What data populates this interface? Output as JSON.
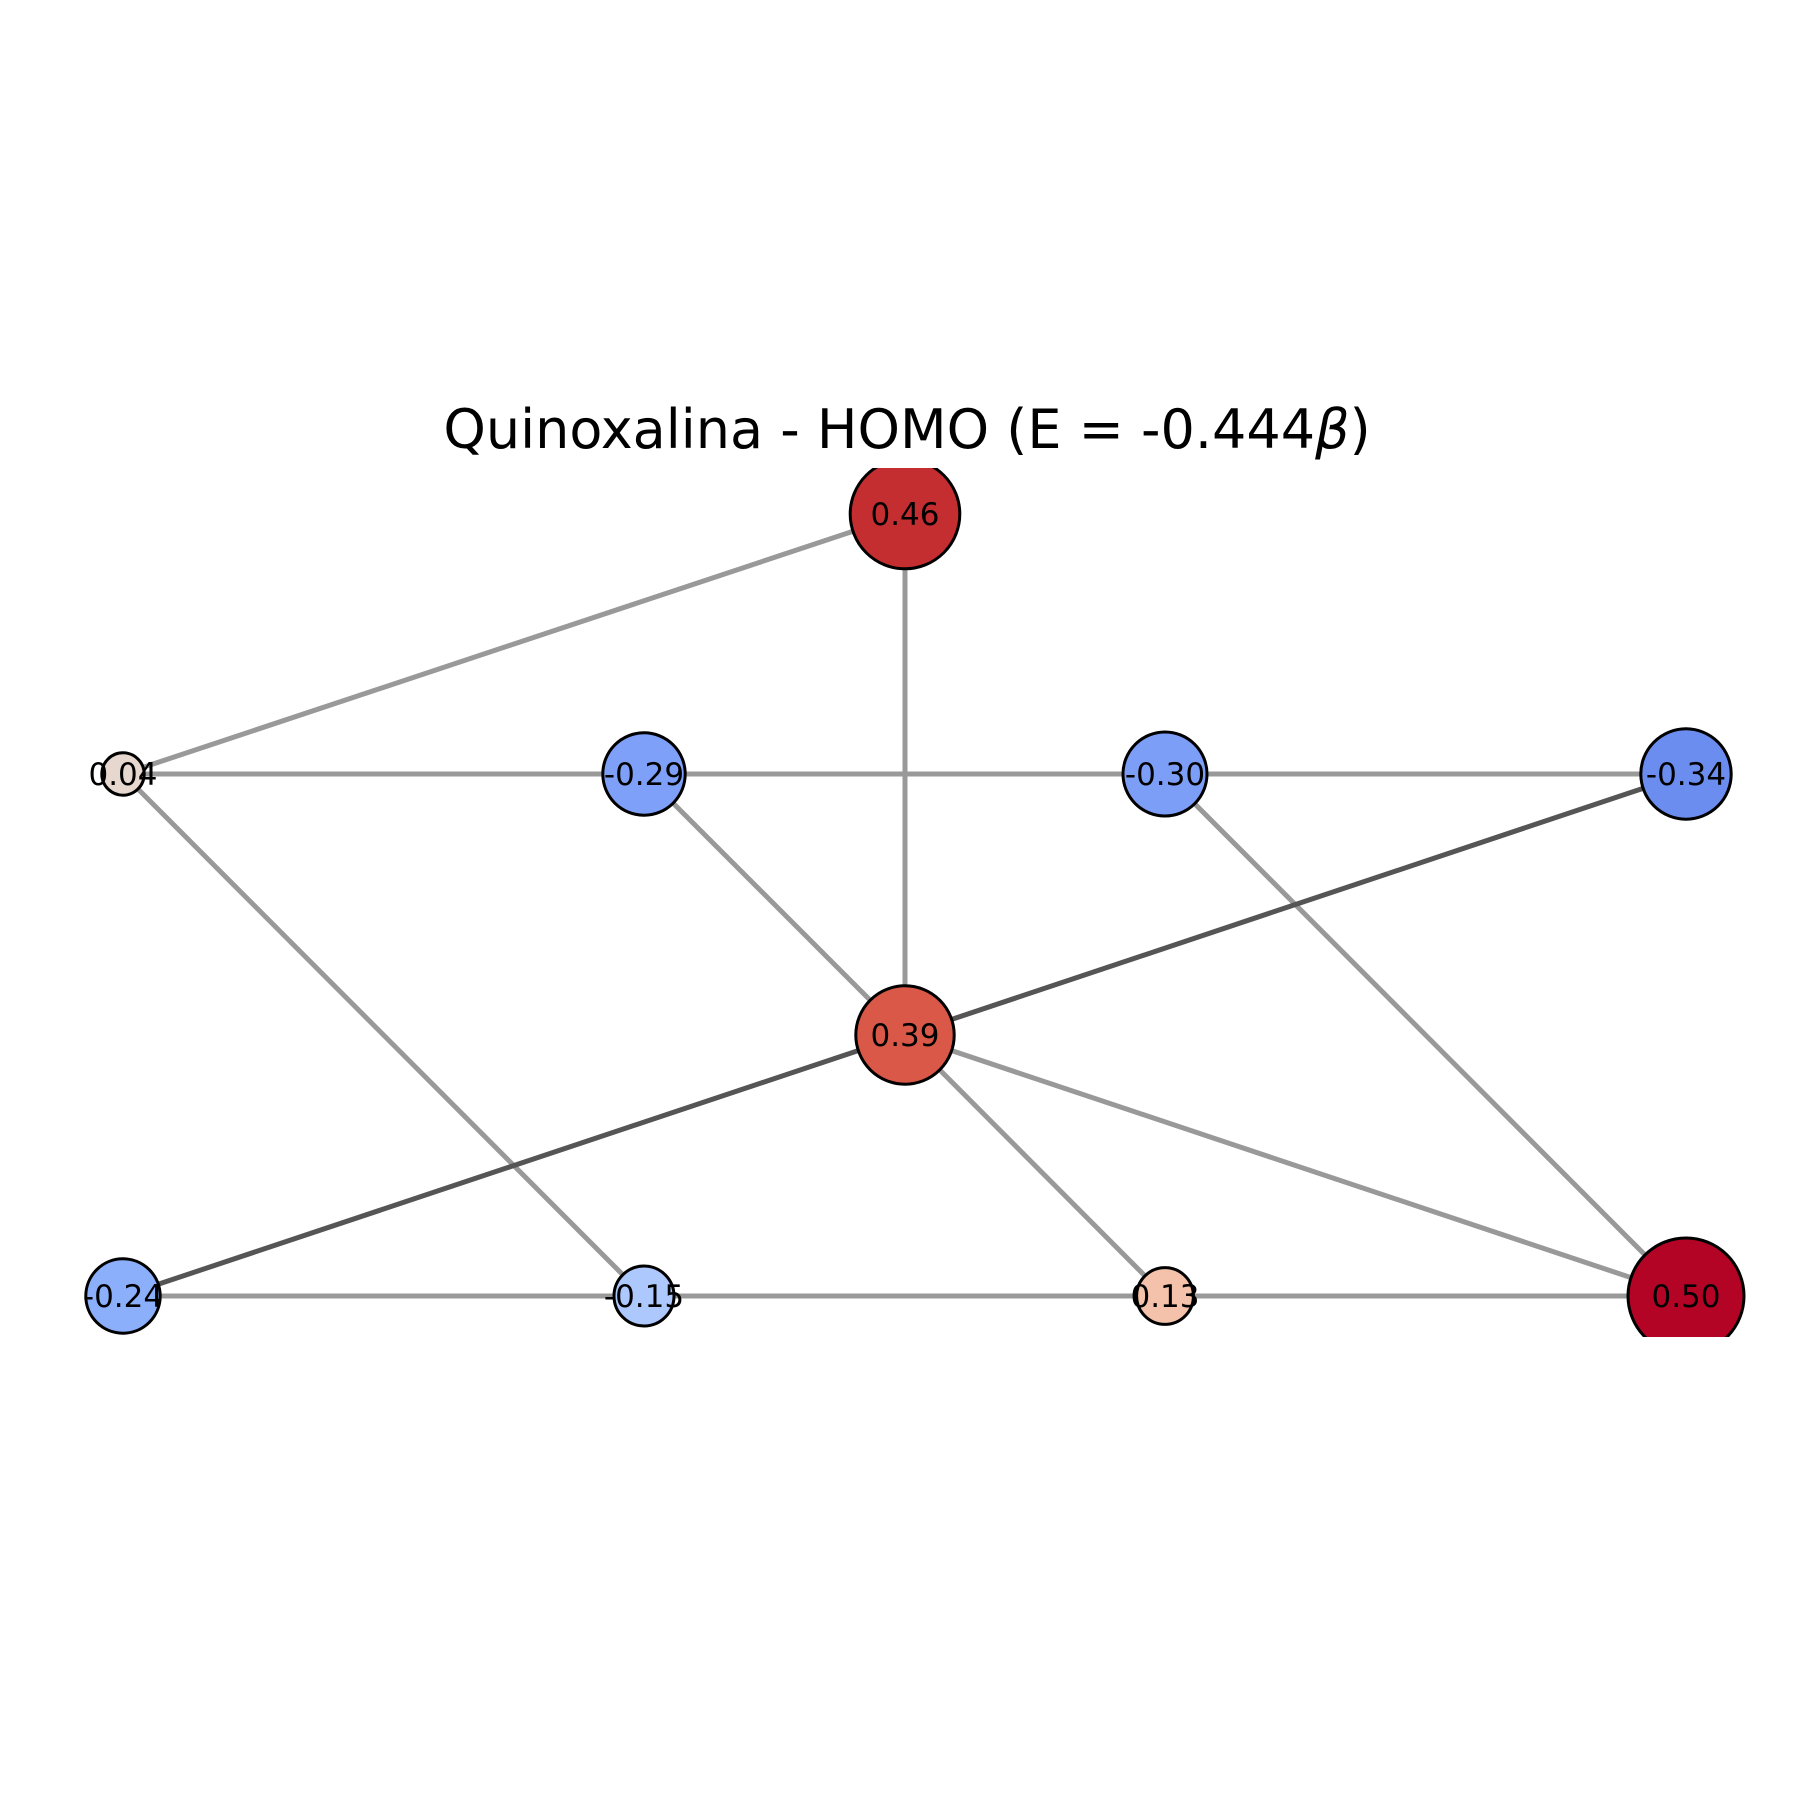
{
  "title": {
    "prefix": "Quinoxalina - HOMO (E = -0.444",
    "symbol": "β",
    "suffix": ")"
  },
  "colors": {
    "background": "#ffffff",
    "node_outline": "#000000",
    "edge_light": "#999999",
    "edge_dark": "#555555"
  },
  "nodes": [
    {
      "id": "n1",
      "label": "0.46",
      "value": 0.46,
      "color": "#c42e31"
    },
    {
      "id": "n2",
      "label": "0.04",
      "value": 0.04,
      "color": "#e6d7cf"
    },
    {
      "id": "n3",
      "label": "-0.29",
      "value": -0.29,
      "color": "#7fa0f8"
    },
    {
      "id": "n4",
      "label": "-0.30",
      "value": -0.3,
      "color": "#7d9ef7"
    },
    {
      "id": "n5",
      "label": "-0.34",
      "value": -0.34,
      "color": "#6b8def"
    },
    {
      "id": "n6",
      "label": "0.39",
      "value": 0.39,
      "color": "#d95847"
    },
    {
      "id": "n7",
      "label": "-0.24",
      "value": -0.24,
      "color": "#8caffc"
    },
    {
      "id": "n8",
      "label": "-0.15",
      "value": -0.15,
      "color": "#adc8fd"
    },
    {
      "id": "n9",
      "label": "0.13",
      "value": 0.13,
      "color": "#f4c2aa"
    },
    {
      "id": "n10",
      "label": "0.50",
      "value": 0.5,
      "color": "#b40426"
    }
  ],
  "edges": [
    {
      "source": "n2",
      "target": "n1",
      "style": "light"
    },
    {
      "source": "n1",
      "target": "n6",
      "style": "light"
    },
    {
      "source": "n2",
      "target": "n3",
      "style": "light"
    },
    {
      "source": "n3",
      "target": "n4",
      "style": "light"
    },
    {
      "source": "n4",
      "target": "n5",
      "style": "light"
    },
    {
      "source": "n2",
      "target": "n8",
      "style": "light"
    },
    {
      "source": "n3",
      "target": "n6",
      "style": "light"
    },
    {
      "source": "n4",
      "target": "n10",
      "style": "light"
    },
    {
      "source": "n6",
      "target": "n5",
      "style": "dark"
    },
    {
      "source": "n7",
      "target": "n6",
      "style": "dark"
    },
    {
      "source": "n6",
      "target": "n9",
      "style": "light"
    },
    {
      "source": "n6",
      "target": "n10",
      "style": "light"
    },
    {
      "source": "n7",
      "target": "n8",
      "style": "light"
    },
    {
      "source": "n8",
      "target": "n9",
      "style": "light"
    },
    {
      "source": "n9",
      "target": "n10",
      "style": "light"
    }
  ]
}
